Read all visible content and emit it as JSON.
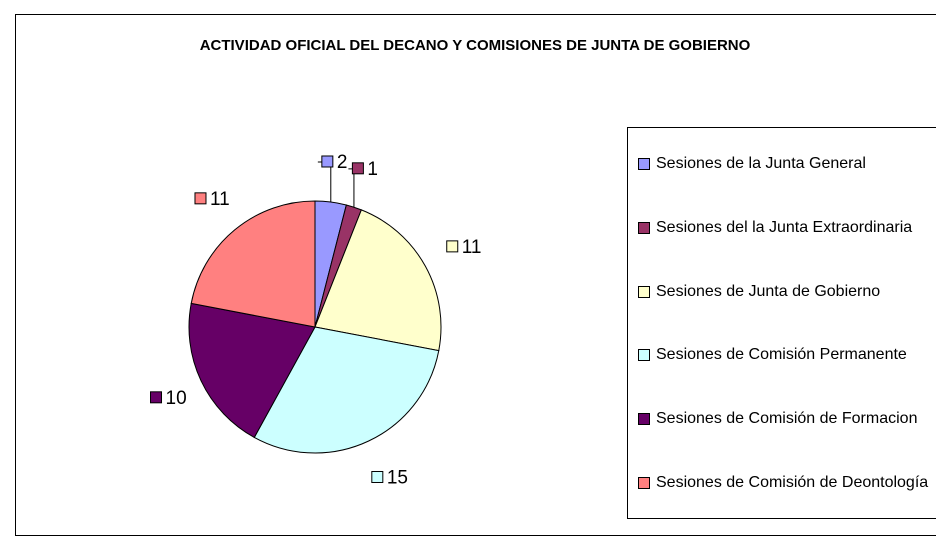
{
  "chart_data": {
    "type": "pie",
    "title": "ACTIVIDAD OFICIAL DEL DECANO Y COMISIONES DE JUNTA DE GOBIERNO",
    "categories": [
      "Sesiones de la Junta General",
      "Sesiones del la Junta Extraordinaria",
      "Sesiones de Junta de Gobierno",
      "Sesiones de Comisión Permanente",
      "Sesiones de Comisión de Formacion",
      "Sesiones de Comisión de Deontología"
    ],
    "values": [
      2,
      1,
      11,
      15,
      10,
      11
    ],
    "colors": [
      "#9999ff",
      "#993366",
      "#ffffcc",
      "#ccffff",
      "#660066",
      "#ff8080"
    ],
    "legend": "right"
  }
}
